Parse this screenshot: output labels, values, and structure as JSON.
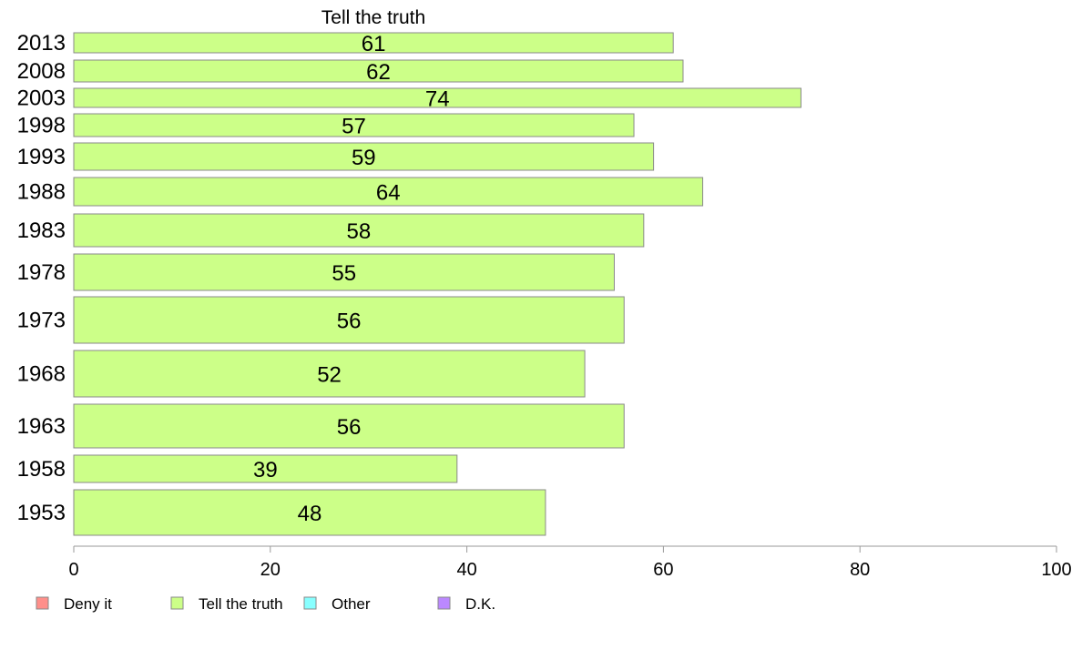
{
  "chart_data": {
    "type": "bar",
    "orientation": "horizontal",
    "title": "Tell the truth",
    "categories": [
      "2013",
      "2008",
      "2003",
      "1998",
      "1993",
      "1988",
      "1983",
      "1978",
      "1973",
      "1968",
      "1963",
      "1958",
      "1953"
    ],
    "series": [
      {
        "name": "Tell the truth",
        "values": [
          61,
          62,
          74,
          57,
          59,
          64,
          58,
          55,
          56,
          52,
          56,
          39,
          48
        ]
      }
    ],
    "data_labels": [
      "61",
      "62",
      "74",
      "57",
      "59",
      "64",
      "58",
      "55",
      "56",
      "52",
      "56",
      "39",
      "48"
    ],
    "xlim": [
      0,
      100
    ],
    "xticks": [
      "0",
      "20",
      "40",
      "60",
      "80",
      "100"
    ],
    "xlabel": "",
    "ylabel": "",
    "grid": false,
    "legend": {
      "placement": "bottom-left",
      "entries": [
        {
          "label": "Deny it",
          "color": "#ff8f8a"
        },
        {
          "label": "Tell the truth",
          "color": "#ccff88"
        },
        {
          "label": "Other",
          "color": "#88ffff"
        },
        {
          "label": "D.K.",
          "color": "#bb88ff"
        }
      ]
    },
    "colors": {
      "bar_fill": "#ccff88",
      "bar_stroke": "#8a8a8a",
      "axis": "#9a9a9a"
    }
  }
}
